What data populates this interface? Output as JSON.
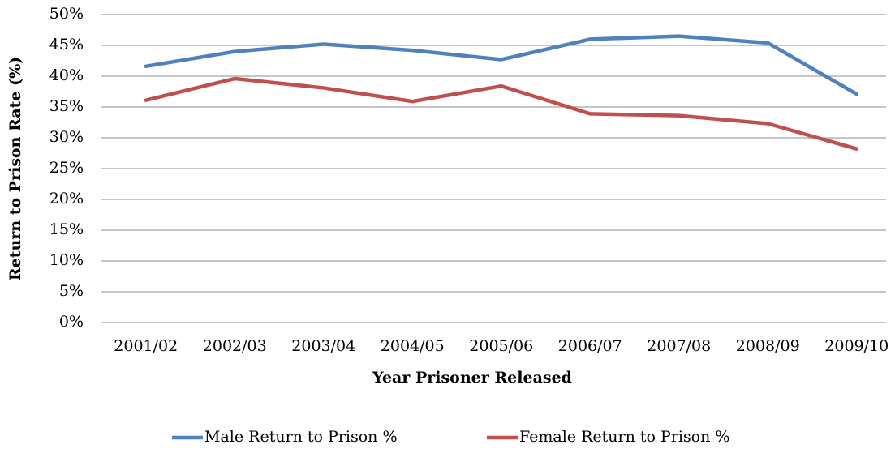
{
  "chart_data": {
    "type": "line",
    "x_label": "Year Prisoner Released",
    "y_label": "Return to Prison Rate (%)",
    "categories": [
      "2001/02",
      "2002/03",
      "2003/04",
      "2004/05",
      "2005/06",
      "2006/07",
      "2007/08",
      "2008/09",
      "2009/10"
    ],
    "series": [
      {
        "name": "Male Return to Prison %",
        "color": "#4f81bd",
        "values": [
          41.6,
          44.0,
          45.2,
          44.2,
          42.7,
          46.0,
          46.5,
          45.4,
          37.1
        ]
      },
      {
        "name": "Female Return to Prison %",
        "color": "#c0504d",
        "values": [
          36.1,
          39.6,
          38.1,
          35.9,
          38.4,
          33.9,
          33.6,
          32.3,
          28.2
        ]
      }
    ],
    "ylim": [
      0,
      50
    ],
    "yticks": [
      {
        "value": 0,
        "label": "0%"
      },
      {
        "value": 5,
        "label": "5%"
      },
      {
        "value": 10,
        "label": "10%"
      },
      {
        "value": 15,
        "label": "15%"
      },
      {
        "value": 20,
        "label": "20%"
      },
      {
        "value": 25,
        "label": "25%"
      },
      {
        "value": 30,
        "label": "30%"
      },
      {
        "value": 35,
        "label": "35%"
      },
      {
        "value": 40,
        "label": "40%"
      },
      {
        "value": 45,
        "label": "45%"
      },
      {
        "value": 50,
        "label": "50%"
      }
    ],
    "grid": true,
    "legend": "bottom"
  }
}
